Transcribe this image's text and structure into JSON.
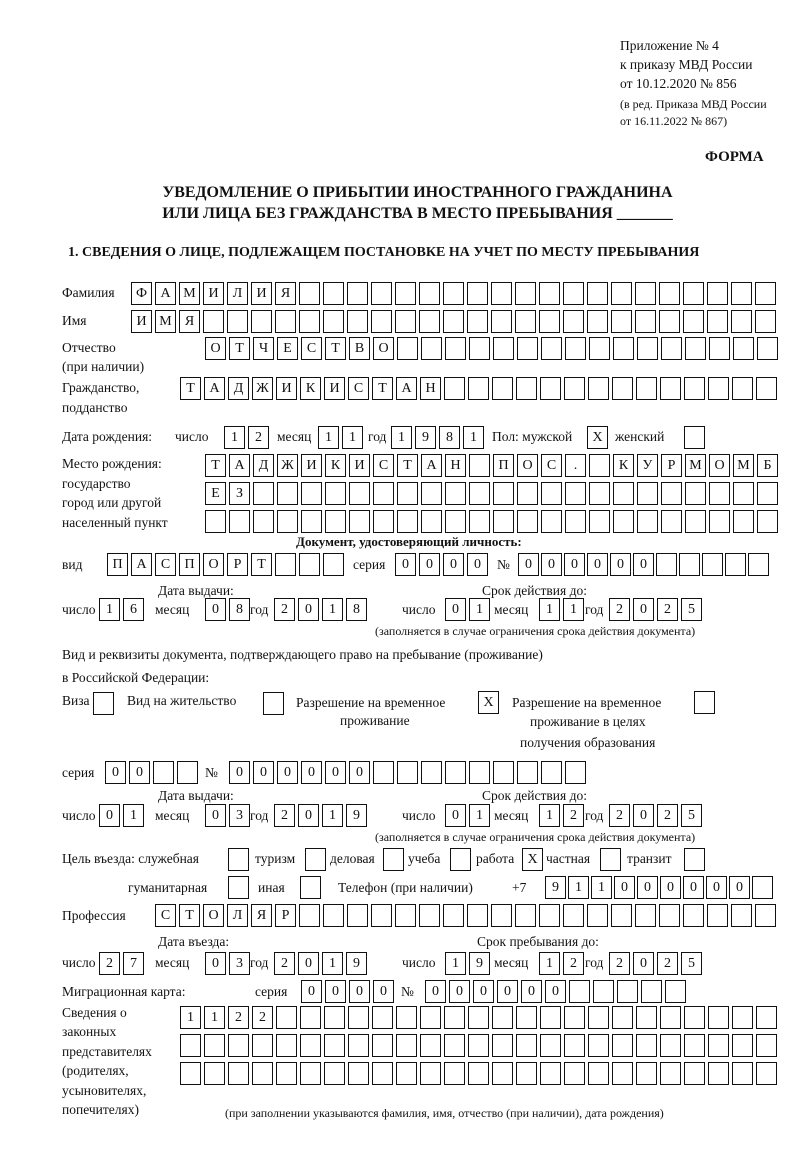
{
  "header": {
    "appendix": [
      "Приложение № 4",
      "к приказу МВД России",
      "от 10.12.2020 № 856"
    ],
    "revision": [
      "(в ред. Приказа МВД России",
      "от 16.11.2022 № 867)"
    ],
    "form_label": "ФОРМА",
    "title_line1": "УВЕДОМЛЕНИЕ О ПРИБЫТИИ ИНОСТРАННОГО ГРАЖДАНИНА",
    "title_line2": "ИЛИ ЛИЦА БЕЗ ГРАЖДАНСТВА В МЕСТО ПРЕБЫВАНИЯ _______"
  },
  "section1": {
    "heading": "1. СВЕДЕНИЯ О ЛИЦЕ, ПОДЛЕЖАЩЕМ ПОСТАНОВКЕ НА УЧЕТ ПО МЕСТУ ПРЕБЫВАНИЯ",
    "surname": {
      "label": "Фамилия",
      "value": "ФАМИЛИЯ"
    },
    "name": {
      "label": "Имя",
      "value": "ИМЯ"
    },
    "patronymic": {
      "label": [
        "Отчество",
        "(при наличии)"
      ],
      "value": "ОТЧЕСТВО"
    },
    "citizenship": {
      "label": [
        "Гражданство,",
        "подданство"
      ],
      "value": "ТАДЖИКИСТАН"
    },
    "birth": {
      "label": "Дата рождения:",
      "day_label": "число",
      "month_label": "месяц",
      "year_label": "год",
      "day": "12",
      "month": "11",
      "year": "1981",
      "sex_label": "Пол: мужской",
      "female_label": "женский",
      "male": "X",
      "female": ""
    },
    "birthplace": {
      "label": [
        "Место рождения:",
        "государство",
        "город или другой",
        "населенный пункт"
      ],
      "rows": [
        "ТАДЖИКИСТАН ПОС. КУРМОМБ",
        "ЕЗ",
        ""
      ]
    },
    "id_doc": {
      "heading": "Документ, удостоверяющий личность:",
      "type_label": "вид",
      "type": "ПАСПОРТ",
      "series_label": "серия",
      "series": "0000",
      "number_label": "№",
      "number": "000000",
      "issue_label": "Дата выдачи:",
      "valid_label": "Срок действия до:",
      "day_label": "число",
      "month_label": "месяц",
      "year_label": "год",
      "issue": {
        "day": "16",
        "month": "08",
        "year": "2018"
      },
      "valid": {
        "day": "01",
        "month": "11",
        "year": "2025"
      },
      "note": "(заполняется в случае ограничения срока действия документа)"
    },
    "stay_doc": {
      "label1": "Вид и реквизиты документа, подтверждающего право на пребывание (проживание)",
      "label2": "в Российской Федерации:",
      "visa_label": "Виза",
      "visa": "",
      "residence_label": "Вид на жительство",
      "residence": "",
      "temp_label": [
        "Разрешение на временное",
        "проживание"
      ],
      "temp": "X",
      "edu_label": [
        "Разрешение на временное",
        "проживание в целях",
        "получения образования"
      ],
      "edu": "",
      "series_label": "серия",
      "series": "00",
      "number_label": "№",
      "number": "000000",
      "issue_label": "Дата выдачи:",
      "valid_label": "Срок действия до:",
      "day_label": "число",
      "month_label": "месяц",
      "year_label": "год",
      "issue": {
        "day": "01",
        "month": "03",
        "year": "2019"
      },
      "valid": {
        "day": "01",
        "month": "12",
        "year": "2025"
      },
      "note": "(заполняется в случае ограничения срока действия документа)"
    },
    "purpose": {
      "label": "Цель въезда: служебная",
      "service": "",
      "tourism_label": "туризм",
      "tourism": "",
      "business_label": "деловая",
      "business": "",
      "study_label": "учеба",
      "study": "",
      "work_label": "работа",
      "work": "X",
      "private_label": "частная",
      "private": "",
      "transit_label": "транзит",
      "transit": "",
      "humanitarian_label": "гуманитарная",
      "humanitarian": "",
      "other_label": "иная",
      "other": ""
    },
    "phone": {
      "label": "Телефон (при наличии)",
      "prefix": "+7",
      "value": "911000000"
    },
    "profession": {
      "label": "Профессия",
      "value": "СТОЛЯР"
    },
    "entry": {
      "entry_label": "Дата въезда:",
      "stay_label": "Срок пребывания до:",
      "day_label": "число",
      "month_label": "месяц",
      "year_label": "год",
      "entry": {
        "day": "27",
        "month": "03",
        "year": "2019"
      },
      "stay": {
        "day": "19",
        "month": "12",
        "year": "2025"
      }
    },
    "migration_card": {
      "label": "Миграционная карта:",
      "series_label": "серия",
      "series": "0000",
      "number_label": "№",
      "number": "000000"
    },
    "representatives": {
      "label": [
        "Сведения о",
        "законных",
        "представителях",
        "(родителях,",
        "усыновителях,",
        "попечителях)"
      ],
      "rows": [
        "1122",
        "",
        ""
      ],
      "note": "(при заполнении указываются фамилия, имя, отчество (при наличии), дата рождения)"
    }
  }
}
